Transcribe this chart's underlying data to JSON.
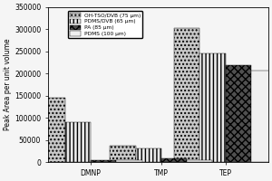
{
  "title": "",
  "ylabel": "Peak Area per unit volume",
  "xlabel": "",
  "categories": [
    "DMNP",
    "TMP",
    "TEP"
  ],
  "series": [
    {
      "label": "OH-TSO/DVB (75 μm)",
      "values": [
        145000,
        37000,
        302000
      ],
      "hatch": "....",
      "facecolor": "#c8c8c8"
    },
    {
      "label": "PDMS/DVB (65 μm)",
      "values": [
        91000,
        32000,
        245000
      ],
      "hatch": "||||",
      "facecolor": "#e8e8e8"
    },
    {
      "label": "PA (85 μm)",
      "values": [
        4000,
        8000,
        218000
      ],
      "hatch": "xxxx",
      "facecolor": "#505050"
    },
    {
      "label": "PDMS (100 μm)",
      "values": [
        5000,
        5000,
        207000
      ],
      "hatch": "====",
      "facecolor": "#f0f0f0"
    }
  ],
  "ylim": [
    0,
    350000
  ],
  "yticks": [
    0,
    50000,
    100000,
    150000,
    200000,
    250000,
    300000,
    350000
  ],
  "ytick_labels": [
    "0",
    "50000",
    "100000",
    "150000",
    "200000",
    "250000",
    "300000",
    "350000"
  ],
  "bar_width": 0.12,
  "group_positions": [
    0.25,
    0.58,
    0.88
  ],
  "background_color": "#f5f5f5",
  "font_size": 5.5
}
